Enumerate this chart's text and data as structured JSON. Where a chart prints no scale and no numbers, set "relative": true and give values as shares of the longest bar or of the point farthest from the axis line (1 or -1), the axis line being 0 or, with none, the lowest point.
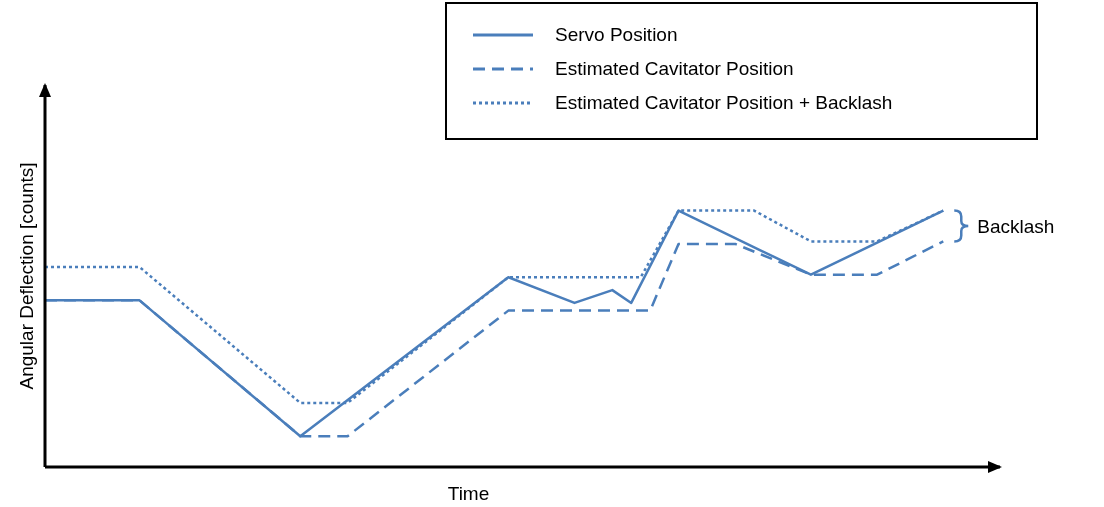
{
  "chart_data": {
    "type": "line",
    "relative": true,
    "xlabel": "Time",
    "ylabel": "Angular Deflection [counts]",
    "legend": "top right",
    "grid": false,
    "marker": "none",
    "annotations": [
      "Backlash"
    ],
    "categories": [
      null,
      null,
      null,
      null,
      null,
      null,
      null,
      null,
      null,
      null,
      null,
      null,
      null,
      null,
      null,
      null,
      null,
      null,
      null,
      null,
      null,
      null,
      null,
      null,
      null,
      null,
      null,
      null,
      null,
      null,
      null,
      null,
      null,
      null,
      null,
      null,
      null,
      null,
      null,
      null,
      null,
      null,
      null,
      null,
      null,
      null,
      null,
      null,
      null,
      null,
      null,
      null,
      null,
      null,
      null,
      null,
      null,
      null,
      null,
      null,
      null,
      null,
      null,
      null,
      null,
      null,
      null,
      null,
      null,
      null,
      null,
      null,
      null,
      null,
      null,
      null,
      null,
      null,
      null,
      null,
      null,
      null,
      null,
      null,
      null,
      null,
      null,
      null,
      null,
      null,
      null,
      null,
      null,
      null,
      null,
      null,
      null,
      null,
      null,
      null,
      null
    ],
    "series": [
      {
        "name": "Servo Position",
        "color": "#4a7ebb",
        "line_style": "solid",
        "values": [
          0.65,
          null,
          null,
          null,
          null,
          null,
          null,
          null,
          null,
          null,
          0.65,
          null,
          null,
          null,
          null,
          null,
          null,
          null,
          null,
          null,
          null,
          null,
          null,
          null,
          null,
          null,
          null,
          0.12,
          null,
          null,
          null,
          null,
          null,
          null,
          null,
          null,
          null,
          null,
          null,
          null,
          null,
          null,
          null,
          null,
          null,
          null,
          null,
          null,
          null,
          0.74,
          null,
          null,
          null,
          null,
          null,
          null,
          0.64,
          null,
          null,
          null,
          0.69,
          null,
          0.64,
          null,
          null,
          null,
          null,
          1,
          null,
          null,
          null,
          null,
          null,
          null,
          null,
          null,
          null,
          null,
          null,
          null,
          null,
          0.75,
          null,
          null,
          null,
          null,
          null,
          null,
          null,
          null,
          null,
          null,
          null,
          null,
          null,
          1,
          null,
          null,
          null,
          null,
          null
        ]
      },
      {
        "name": "Estimated Cavitator Position",
        "color": "#4a7ebb",
        "line_style": "dashed",
        "values": [
          0.65,
          null,
          null,
          null,
          null,
          null,
          null,
          null,
          null,
          null,
          0.65,
          null,
          null,
          null,
          null,
          null,
          null,
          null,
          null,
          null,
          null,
          null,
          null,
          null,
          null,
          null,
          null,
          0.12,
          null,
          null,
          null,
          null,
          0.12,
          null,
          null,
          null,
          null,
          null,
          null,
          null,
          null,
          null,
          null,
          null,
          null,
          null,
          null,
          null,
          null,
          0.61,
          null,
          null,
          null,
          null,
          null,
          null,
          null,
          null,
          null,
          null,
          null,
          null,
          null,
          null,
          0.61,
          null,
          null,
          0.87,
          null,
          null,
          null,
          null,
          null,
          0.87,
          null,
          null,
          null,
          null,
          null,
          null,
          null,
          0.75,
          null,
          null,
          null,
          null,
          null,
          null,
          0.75,
          null,
          null,
          null,
          null,
          null,
          null,
          0.88,
          null,
          null,
          null,
          null,
          null
        ]
      },
      {
        "name": "Estimated Cavitator Position + Backlash",
        "color": "#4a7ebb",
        "line_style": "dotted",
        "values": [
          0.78,
          null,
          null,
          null,
          null,
          null,
          null,
          null,
          null,
          null,
          0.78,
          null,
          null,
          null,
          null,
          null,
          null,
          null,
          null,
          null,
          null,
          null,
          null,
          null,
          null,
          null,
          null,
          0.25,
          null,
          null,
          null,
          null,
          0.25,
          null,
          null,
          null,
          null,
          null,
          null,
          null,
          null,
          null,
          null,
          null,
          null,
          null,
          null,
          null,
          null,
          0.74,
          null,
          null,
          null,
          null,
          null,
          null,
          null,
          null,
          null,
          null,
          null,
          null,
          null,
          0.74,
          null,
          null,
          null,
          1,
          null,
          null,
          null,
          null,
          null,
          null,
          null,
          1,
          null,
          null,
          null,
          null,
          null,
          0.88,
          null,
          null,
          null,
          null,
          null,
          null,
          0.88,
          null,
          null,
          null,
          null,
          null,
          null,
          1,
          null,
          null,
          null,
          null,
          null
        ]
      }
    ]
  }
}
